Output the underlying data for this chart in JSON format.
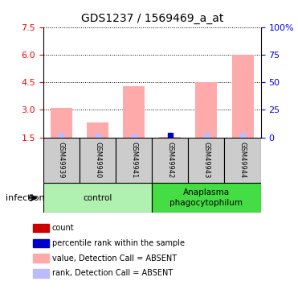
{
  "title": "GDS1237 / 1569469_a_at",
  "samples": [
    "GSM49939",
    "GSM49940",
    "GSM49941",
    "GSM49942",
    "GSM49943",
    "GSM49944"
  ],
  "groups": [
    {
      "label": "control",
      "color": "#b0f0b0",
      "samples": [
        0,
        1,
        2
      ]
    },
    {
      "label": "Anaplasma\nphagocytophilum",
      "color": "#44dd44",
      "samples": [
        3,
        4,
        5
      ]
    }
  ],
  "ylim_left": [
    1.5,
    7.5
  ],
  "yticks_left": [
    1.5,
    3.0,
    4.5,
    6.0,
    7.5
  ],
  "ylim_right": [
    0,
    100
  ],
  "yticks_right": [
    0,
    25,
    50,
    75,
    100
  ],
  "yright_labels": [
    "0",
    "25",
    "50",
    "75",
    "100%"
  ],
  "bar_values": [
    3.1,
    2.3,
    4.3,
    1.52,
    4.5,
    6.0
  ],
  "rank_values": [
    1.62,
    1.57,
    1.55,
    1.62,
    1.63,
    1.63
  ],
  "absent_marker_indices": [
    0,
    1,
    2,
    3,
    4,
    5
  ],
  "count_marker_index": 3,
  "bar_color_absent": "#ffaaaa",
  "rank_color_absent": "#bbbbff",
  "rank_marker_dark_color": "#0000cc",
  "gridline_color": "#000000",
  "sample_box_color": "#cccccc",
  "title_fontsize": 10,
  "bar_baseline": 1.5,
  "legend_items": [
    {
      "color": "#cc0000",
      "label": "count"
    },
    {
      "color": "#0000cc",
      "label": "percentile rank within the sample"
    },
    {
      "color": "#ffaaaa",
      "label": "value, Detection Call = ABSENT"
    },
    {
      "color": "#bbbbff",
      "label": "rank, Detection Call = ABSENT"
    }
  ]
}
